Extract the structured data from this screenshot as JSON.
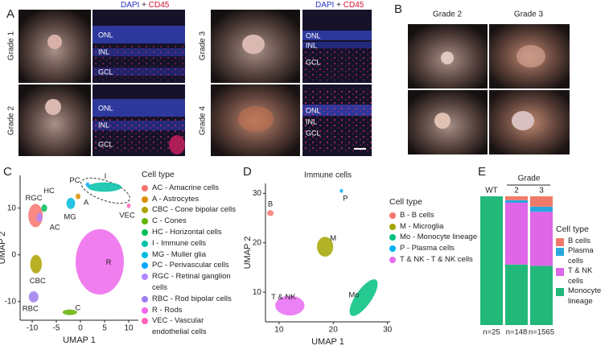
{
  "figure": {
    "panels": [
      "A",
      "B",
      "C",
      "D",
      "E"
    ],
    "stain": {
      "dapi": "DAPI",
      "plus": "+",
      "cd45": "CD45"
    },
    "grades_a": [
      "Grade 1",
      "Grade 2",
      "Grade 3",
      "Grade 4"
    ],
    "layers": [
      [
        "ONL",
        "INL",
        "GCL"
      ],
      [
        "ONL",
        "INL",
        "GCL"
      ],
      [
        "ONL",
        "INL",
        "GCL"
      ],
      [
        "ONL",
        "INL",
        "GCL"
      ]
    ],
    "grades_b": [
      "Grade 2",
      "Grade 3"
    ]
  },
  "chart_data": [
    {
      "type": "umap",
      "x_label": "UMAP 1",
      "y_label": "UMAP 2",
      "legend_title": "Cell type",
      "xlim": [
        -12.5,
        12
      ],
      "ylim": [
        -14,
        17
      ],
      "xticks": [
        -10,
        -5,
        0,
        5,
        10
      ],
      "yticks": [
        -10,
        0,
        10
      ],
      "clusters": [
        {
          "label": "AC",
          "name": "AC - Amacrine cells",
          "color": "#F8766D",
          "x": -9.3,
          "y": 8.4,
          "rx": 1.5,
          "ry": 2.5
        },
        {
          "label": "A",
          "name": "A - Astrocytes",
          "color": "#DB8E00",
          "x": -0.5,
          "y": 12.5,
          "rx": 0.5,
          "ry": 0.6
        },
        {
          "label": "CBC",
          "name": "CBC - Cone bipolar cells",
          "color": "#AEA200",
          "x": -9.2,
          "y": -2,
          "rx": 1.2,
          "ry": 2
        },
        {
          "label": "C",
          "name": "C - Cones",
          "color": "#64B200",
          "x": -2.2,
          "y": -12.3,
          "rx": 1.5,
          "ry": 0.6
        },
        {
          "label": "HC",
          "name": "HC - Horizontal cells",
          "color": "#00BD5C",
          "x": -7.5,
          "y": 10,
          "rx": 0.6,
          "ry": 0.8
        },
        {
          "label": "I",
          "name": "I - Immune cells",
          "color": "#00C1A7",
          "x": 5,
          "y": 14.5,
          "rx": 3.5,
          "ry": 1
        },
        {
          "label": "MG",
          "name": "MG - Muller glia",
          "color": "#00BADE",
          "x": -2,
          "y": 11,
          "rx": 0.9,
          "ry": 1.2
        },
        {
          "label": "PC",
          "name": "PC - Perivascular cells",
          "color": "#00A6FF",
          "x": 1.5,
          "y": 15,
          "rx": 0.4,
          "ry": 0.5
        },
        {
          "label": "RGC",
          "name": "RGC - Retinal ganglion cells",
          "color": "#B385FF",
          "x": -8.5,
          "y": 8,
          "rx": 0.6,
          "ry": 1
        },
        {
          "label": "RBC",
          "name": "RBC - Rod bipolar cells",
          "color": "#9C7CF0",
          "x": -9.7,
          "y": -9,
          "rx": 1,
          "ry": 1.2
        },
        {
          "label": "R",
          "name": "R - Rods",
          "color": "#EF67EB",
          "x": 4,
          "y": -1.5,
          "rx": 5,
          "ry": 7
        },
        {
          "label": "VEC",
          "name": "VEC - Vascular endothelial cells",
          "color": "#FF63B6",
          "x": 10,
          "y": 10.5,
          "rx": 0.4,
          "ry": 0.5
        }
      ]
    },
    {
      "type": "umap",
      "title": "Immune cells",
      "x_label": "UMAP 1",
      "y_label": "UMAP 2",
      "legend_title": "Cell type",
      "xlim": [
        7.5,
        30.5
      ],
      "ylim": [
        4,
        32
      ],
      "xticks": [
        10,
        20,
        30
      ],
      "yticks": [
        10,
        20,
        30
      ],
      "clusters": [
        {
          "label": "B",
          "name": "B - B cells",
          "color": "#F8766D",
          "x": 8.4,
          "y": 26,
          "rx": 0.6,
          "ry": 0.6
        },
        {
          "label": "M",
          "name": "M - Microglia",
          "color": "#A3A500",
          "x": 18.5,
          "y": 19.2,
          "rx": 1.5,
          "ry": 2
        },
        {
          "label": "Mo",
          "name": "Mo - Monocyte lineage",
          "color": "#00BF7D",
          "x": 25.6,
          "y": 8.9,
          "rx": 4,
          "ry": 1.6
        },
        {
          "label": "P",
          "name": "P - Plasma cells",
          "color": "#00B0F6",
          "x": 21.5,
          "y": 30.5,
          "rx": 0.3,
          "ry": 0.4
        },
        {
          "label": "T & NK",
          "name": "T & NK - T & NK cells",
          "color": "#E76BF3",
          "x": 12,
          "y": 7.3,
          "rx": 2.7,
          "ry": 2
        }
      ]
    },
    {
      "type": "stacked_bar",
      "group_label": "Grade",
      "legend_title": "Cell type",
      "categories": [
        "WT",
        "2",
        "3"
      ],
      "n_labels": [
        "n=25",
        "n=148",
        "n=1565"
      ],
      "ylim": [
        0,
        100
      ],
      "series": [
        {
          "name": "B cells",
          "color": "#F07A6A",
          "values": [
            0,
            3,
            8
          ]
        },
        {
          "name": "Plasma cells",
          "color": "#29A8E0",
          "values": [
            0,
            2,
            4
          ]
        },
        {
          "name": "T & NK cells",
          "color": "#E066E8",
          "values": [
            0,
            48,
            42
          ]
        },
        {
          "name": "Monocyte lineage",
          "color": "#22B87A",
          "values": [
            100,
            47,
            46
          ]
        }
      ]
    }
  ]
}
